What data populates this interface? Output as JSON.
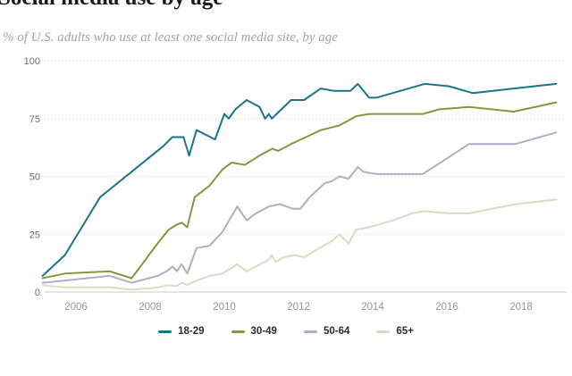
{
  "title": "Social media use by age",
  "subtitle": "% of U.S. adults who use at least one social media site, by age",
  "chart_data": {
    "type": "line",
    "title": "Social media use by age",
    "subtitle": "% of U.S. adults who use at least one social media site, by age",
    "xlabel": "",
    "ylabel": "% of U.S. adults",
    "ylim": [
      0,
      100
    ],
    "xlim": [
      2004.9,
      2019.3
    ],
    "y_ticks": [
      0,
      25,
      50,
      75,
      100
    ],
    "x_ticks": [
      2006,
      2008,
      2010,
      2012,
      2014,
      2016,
      2018
    ],
    "grid": "horizontal dotted",
    "legend_position": "bottom center",
    "axis_color": "#c9c9c9",
    "gridline_color": "#d2d2d2",
    "series": [
      {
        "name": "18-29",
        "color": "#1a7588",
        "points": [
          [
            2005.1,
            7
          ],
          [
            2005.7,
            16
          ],
          [
            2006.65,
            41
          ],
          [
            2008.35,
            63
          ],
          [
            2008.6,
            67
          ],
          [
            2008.9,
            67
          ],
          [
            2009.05,
            59
          ],
          [
            2009.25,
            70
          ],
          [
            2009.5,
            68
          ],
          [
            2009.75,
            66
          ],
          [
            2010.0,
            77
          ],
          [
            2010.12,
            75
          ],
          [
            2010.3,
            79
          ],
          [
            2010.6,
            83
          ],
          [
            2010.95,
            80
          ],
          [
            2011.1,
            75
          ],
          [
            2011.2,
            77
          ],
          [
            2011.28,
            75
          ],
          [
            2011.8,
            83
          ],
          [
            2012.15,
            83
          ],
          [
            2012.6,
            88
          ],
          [
            2012.95,
            87
          ],
          [
            2013.4,
            87
          ],
          [
            2013.6,
            90
          ],
          [
            2013.9,
            84
          ],
          [
            2014.1,
            84
          ],
          [
            2015.4,
            90
          ],
          [
            2016.05,
            89
          ],
          [
            2016.7,
            86
          ],
          [
            2017.8,
            88
          ],
          [
            2018.95,
            90
          ]
        ]
      },
      {
        "name": "30-49",
        "color": "#8c943e",
        "points": [
          [
            2005.1,
            6
          ],
          [
            2005.7,
            8
          ],
          [
            2006.9,
            9
          ],
          [
            2007.5,
            6
          ],
          [
            2008.2,
            21
          ],
          [
            2008.5,
            27
          ],
          [
            2008.7,
            29
          ],
          [
            2008.85,
            30
          ],
          [
            2009.0,
            28
          ],
          [
            2009.2,
            41
          ],
          [
            2009.6,
            46
          ],
          [
            2009.95,
            53
          ],
          [
            2010.2,
            56
          ],
          [
            2010.55,
            55
          ],
          [
            2010.95,
            59
          ],
          [
            2011.3,
            62
          ],
          [
            2011.45,
            61
          ],
          [
            2011.8,
            64
          ],
          [
            2012.2,
            67
          ],
          [
            2012.6,
            70
          ],
          [
            2013.1,
            72
          ],
          [
            2013.55,
            76
          ],
          [
            2013.9,
            77
          ],
          [
            2015.35,
            77
          ],
          [
            2015.8,
            79
          ],
          [
            2016.6,
            80
          ],
          [
            2017.8,
            78
          ],
          [
            2018.95,
            82
          ]
        ]
      },
      {
        "name": "50-64",
        "color": "#a8b2c4",
        "points": [
          [
            2005.1,
            4
          ],
          [
            2005.7,
            5
          ],
          [
            2006.9,
            7
          ],
          [
            2007.5,
            4
          ],
          [
            2008.2,
            7
          ],
          [
            2008.45,
            9
          ],
          [
            2008.6,
            11
          ],
          [
            2008.72,
            9
          ],
          [
            2008.85,
            12
          ],
          [
            2009.0,
            8
          ],
          [
            2009.25,
            19
          ],
          [
            2009.6,
            20
          ],
          [
            2009.95,
            26
          ],
          [
            2010.35,
            37
          ],
          [
            2010.6,
            31
          ],
          [
            2010.85,
            34
          ],
          [
            2011.2,
            37
          ],
          [
            2011.5,
            38
          ],
          [
            2011.85,
            36
          ],
          [
            2012.05,
            36
          ],
          [
            2012.3,
            41
          ],
          [
            2012.7,
            47
          ],
          [
            2012.9,
            48
          ],
          [
            2013.1,
            50
          ],
          [
            2013.35,
            49
          ],
          [
            2013.6,
            54
          ],
          [
            2013.75,
            52
          ],
          [
            2014.1,
            51
          ],
          [
            2015.35,
            51
          ],
          [
            2016.6,
            64
          ],
          [
            2017.85,
            64
          ],
          [
            2018.95,
            69
          ]
        ]
      },
      {
        "name": "65+",
        "color": "#dbdbc5",
        "points": [
          [
            2005.1,
            3
          ],
          [
            2005.7,
            2
          ],
          [
            2006.9,
            2
          ],
          [
            2007.5,
            1
          ],
          [
            2008.2,
            2
          ],
          [
            2008.5,
            3
          ],
          [
            2008.7,
            2.5
          ],
          [
            2008.85,
            4
          ],
          [
            2009.0,
            3
          ],
          [
            2009.25,
            5
          ],
          [
            2009.6,
            7
          ],
          [
            2009.95,
            8
          ],
          [
            2010.35,
            12
          ],
          [
            2010.6,
            9
          ],
          [
            2011.2,
            14
          ],
          [
            2011.28,
            16
          ],
          [
            2011.38,
            13
          ],
          [
            2011.6,
            15
          ],
          [
            2011.9,
            16
          ],
          [
            2012.15,
            15
          ],
          [
            2012.45,
            18
          ],
          [
            2012.9,
            22
          ],
          [
            2013.1,
            25
          ],
          [
            2013.35,
            21
          ],
          [
            2013.55,
            27
          ],
          [
            2013.9,
            28
          ],
          [
            2014.55,
            31
          ],
          [
            2015.05,
            34
          ],
          [
            2015.4,
            35
          ],
          [
            2016.05,
            34
          ],
          [
            2016.6,
            34
          ],
          [
            2017.85,
            38
          ],
          [
            2018.95,
            40
          ]
        ]
      }
    ]
  }
}
